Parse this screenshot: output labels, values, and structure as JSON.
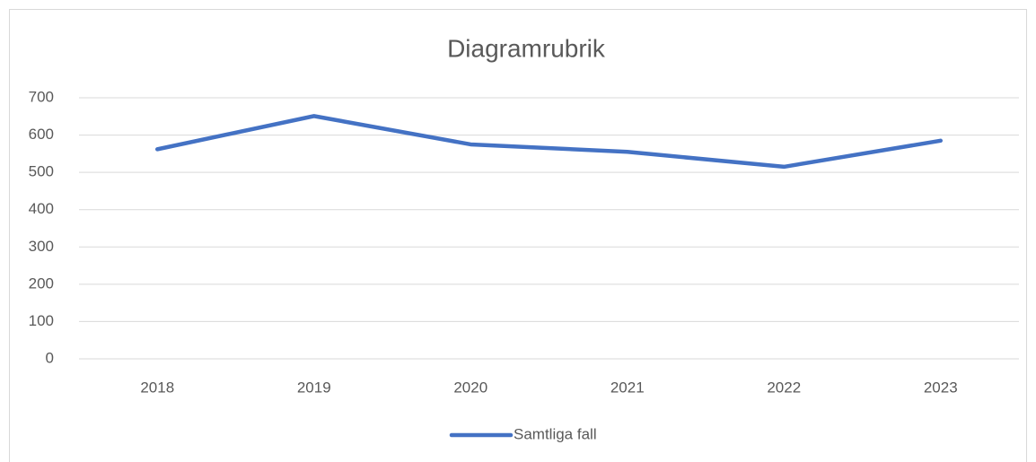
{
  "chart_data": {
    "type": "line",
    "title": "Diagramrubrik",
    "categories": [
      "2018",
      "2019",
      "2020",
      "2021",
      "2022",
      "2023"
    ],
    "series": [
      {
        "name": "Samtliga fall",
        "color": "#4472c4",
        "values": [
          562,
          651,
          575,
          555,
          515,
          585
        ]
      }
    ],
    "ylim": [
      0,
      700
    ],
    "yticks": [
      0,
      100,
      200,
      300,
      400,
      500,
      600,
      700
    ],
    "grid": true,
    "legend": "bottom"
  }
}
